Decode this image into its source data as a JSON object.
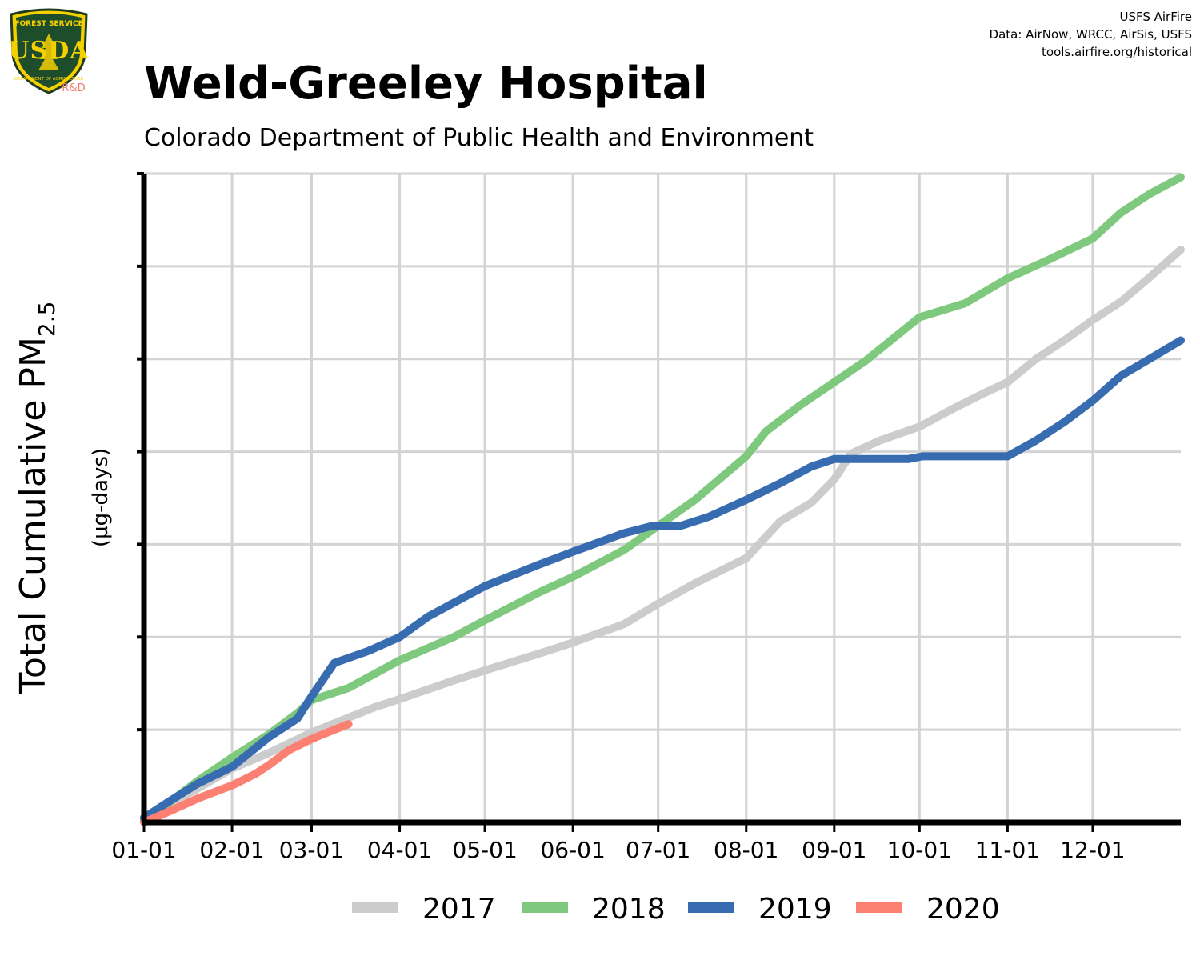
{
  "header": {
    "title": "Weld-Greeley Hospital",
    "subtitle": "Colorado Department of Public Health and Environment"
  },
  "credits": {
    "line1": "USFS AirFire",
    "line2": "Data: AirNow, WRCC, AirSis, USFS",
    "line3": "tools.airfire.org/historical"
  },
  "logo": {
    "top_text": "FOREST SERVICE",
    "letters": "USDA",
    "bottom_text": "DEPARTMENT OF AGRICULTURE",
    "rd_label": "R&D"
  },
  "chart_data": {
    "type": "line",
    "ylabel_main": "Total Cumulative PM",
    "ylabel_sub": "2.5",
    "ylabel_units": "(µg-days)",
    "x_ticks": [
      "01-01",
      "02-01",
      "03-01",
      "04-01",
      "05-01",
      "06-01",
      "07-01",
      "08-01",
      "09-01",
      "10-01",
      "11-01",
      "12-01"
    ],
    "x_tick_days": [
      1,
      32,
      60,
      91,
      121,
      152,
      182,
      213,
      244,
      274,
      305,
      335
    ],
    "xlim": [
      1,
      366
    ],
    "ylim": [
      0,
      7
    ],
    "y_tick_values": [
      1,
      2,
      3,
      4,
      5,
      6,
      7
    ],
    "y_tick_labels_shown": false,
    "grid": true,
    "legend_position": "bottom",
    "series": [
      {
        "name": "2017",
        "color": "#cccccc",
        "points": [
          [
            1,
            0.02
          ],
          [
            15,
            0.28
          ],
          [
            32,
            0.58
          ],
          [
            45,
            0.75
          ],
          [
            60,
            0.97
          ],
          [
            73,
            1.13
          ],
          [
            82,
            1.24
          ],
          [
            91,
            1.33
          ],
          [
            110,
            1.53
          ],
          [
            121,
            1.64
          ],
          [
            140,
            1.82
          ],
          [
            152,
            1.94
          ],
          [
            170,
            2.14
          ],
          [
            182,
            2.36
          ],
          [
            195,
            2.58
          ],
          [
            213,
            2.85
          ],
          [
            225,
            3.25
          ],
          [
            236,
            3.45
          ],
          [
            244,
            3.7
          ],
          [
            250,
            3.98
          ],
          [
            260,
            4.12
          ],
          [
            274,
            4.27
          ],
          [
            285,
            4.45
          ],
          [
            296,
            4.62
          ],
          [
            305,
            4.75
          ],
          [
            315,
            5.0
          ],
          [
            325,
            5.2
          ],
          [
            335,
            5.42
          ],
          [
            345,
            5.62
          ],
          [
            355,
            5.88
          ],
          [
            366,
            6.18
          ]
        ]
      },
      {
        "name": "2018",
        "color": "#7fc97f",
        "points": [
          [
            1,
            0.03
          ],
          [
            10,
            0.22
          ],
          [
            20,
            0.45
          ],
          [
            32,
            0.7
          ],
          [
            45,
            0.95
          ],
          [
            55,
            1.18
          ],
          [
            60,
            1.32
          ],
          [
            73,
            1.45
          ],
          [
            91,
            1.75
          ],
          [
            110,
            2.0
          ],
          [
            121,
            2.18
          ],
          [
            140,
            2.48
          ],
          [
            152,
            2.65
          ],
          [
            170,
            2.94
          ],
          [
            182,
            3.2
          ],
          [
            195,
            3.48
          ],
          [
            213,
            3.95
          ],
          [
            220,
            4.22
          ],
          [
            232,
            4.5
          ],
          [
            244,
            4.75
          ],
          [
            255,
            4.98
          ],
          [
            274,
            5.45
          ],
          [
            290,
            5.6
          ],
          [
            305,
            5.87
          ],
          [
            318,
            6.05
          ],
          [
            335,
            6.3
          ],
          [
            345,
            6.58
          ],
          [
            355,
            6.78
          ],
          [
            366,
            6.96
          ]
        ]
      },
      {
        "name": "2019",
        "color": "#386cb0",
        "points": [
          [
            1,
            0.05
          ],
          [
            10,
            0.23
          ],
          [
            20,
            0.42
          ],
          [
            32,
            0.6
          ],
          [
            45,
            0.92
          ],
          [
            55,
            1.12
          ],
          [
            60,
            1.36
          ],
          [
            68,
            1.72
          ],
          [
            80,
            1.85
          ],
          [
            91,
            2.0
          ],
          [
            101,
            2.22
          ],
          [
            121,
            2.55
          ],
          [
            140,
            2.78
          ],
          [
            152,
            2.92
          ],
          [
            170,
            3.12
          ],
          [
            180,
            3.2
          ],
          [
            190,
            3.2
          ],
          [
            200,
            3.3
          ],
          [
            213,
            3.48
          ],
          [
            225,
            3.66
          ],
          [
            236,
            3.84
          ],
          [
            244,
            3.92
          ],
          [
            255,
            3.92
          ],
          [
            270,
            3.92
          ],
          [
            275,
            3.95
          ],
          [
            290,
            3.95
          ],
          [
            300,
            3.95
          ],
          [
            305,
            3.95
          ],
          [
            315,
            4.12
          ],
          [
            325,
            4.32
          ],
          [
            335,
            4.55
          ],
          [
            345,
            4.82
          ],
          [
            355,
            5.0
          ],
          [
            366,
            5.2
          ]
        ]
      },
      {
        "name": "2020",
        "color": "#fb8072",
        "points": [
          [
            1,
            0.0
          ],
          [
            10,
            0.12
          ],
          [
            20,
            0.26
          ],
          [
            32,
            0.4
          ],
          [
            40,
            0.52
          ],
          [
            45,
            0.62
          ],
          [
            52,
            0.78
          ],
          [
            60,
            0.9
          ],
          [
            68,
            1.0
          ],
          [
            73,
            1.06
          ]
        ]
      }
    ]
  }
}
